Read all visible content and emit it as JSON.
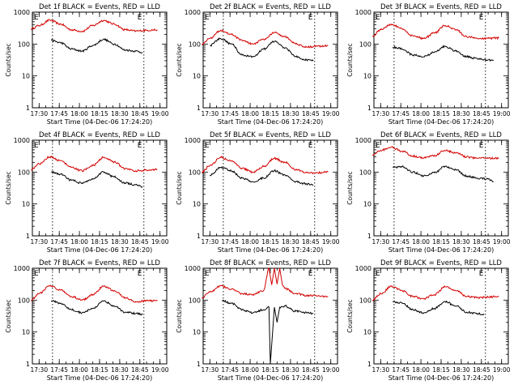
{
  "chart_data": [
    {
      "type": "line",
      "title": "Det 1f BLACK = Events, RED = LLD",
      "ylabel": "Counts/sec",
      "xlabel": "Start Time (04-Dec-06 17:24:20)",
      "x_tick_labels": [
        "17:30",
        "17:45",
        "18:00",
        "18:15",
        "18:30",
        "18:45",
        "19:00"
      ],
      "y_tick_labels": [
        "1",
        "10",
        "100",
        "1000"
      ],
      "ylim": [
        1,
        1000
      ],
      "y_scale": "log",
      "markers": [
        {
          "x": "17:40",
          "label": "E"
        },
        {
          "x": "18:48",
          "label": "E"
        }
      ],
      "series": [
        {
          "color": "#d40000",
          "x": [
            "17:24",
            "17:30",
            "17:38",
            "17:46",
            "17:54",
            "18:02",
            "18:10",
            "18:18",
            "18:26",
            "18:34",
            "18:42",
            "18:50",
            "18:58"
          ],
          "values": [
            300,
            380,
            560,
            420,
            280,
            250,
            380,
            550,
            420,
            280,
            255,
            270,
            280
          ]
        },
        {
          "color": "#000000",
          "x": [
            "17:39",
            "17:46",
            "17:54",
            "18:02",
            "18:10",
            "18:18",
            "18:26",
            "18:34",
            "18:42",
            "18:47"
          ],
          "values": [
            130,
            110,
            70,
            60,
            90,
            140,
            100,
            65,
            60,
            55
          ]
        }
      ]
    },
    {
      "type": "line",
      "title": "Det 2f BLACK = Events, RED = LLD",
      "ylabel": "Counts/sec",
      "xlabel": "Start Time (04-Dec-06 17:24:20)",
      "x_tick_labels": [
        "17:30",
        "17:45",
        "18:00",
        "18:15",
        "18:30",
        "18:45",
        "19:00"
      ],
      "y_tick_labels": [
        "1",
        "10",
        "100",
        "1000"
      ],
      "ylim": [
        1,
        1000
      ],
      "y_scale": "log",
      "markers": [
        {
          "x": "17:40",
          "label": "E"
        },
        {
          "x": "18:48",
          "label": "E"
        }
      ],
      "series": [
        {
          "color": "#d40000",
          "x": [
            "17:24",
            "17:30",
            "17:38",
            "17:46",
            "17:54",
            "18:02",
            "18:10",
            "18:18",
            "18:26",
            "18:34",
            "18:42",
            "18:50",
            "18:58"
          ],
          "values": [
            100,
            150,
            270,
            200,
            130,
            100,
            140,
            230,
            170,
            100,
            80,
            85,
            90
          ]
        },
        {
          "color": "#000000",
          "x": [
            "17:30",
            "17:38",
            "17:46",
            "17:54",
            "18:02",
            "18:10",
            "18:18",
            "18:26",
            "18:34",
            "18:42",
            "18:47"
          ],
          "values": [
            90,
            150,
            100,
            45,
            40,
            70,
            120,
            75,
            40,
            32,
            30
          ]
        }
      ]
    },
    {
      "type": "line",
      "title": "Det 3f BLACK = Events, RED = LLD",
      "ylabel": "Counts/sec",
      "xlabel": "Start Time (04-Dec-06 17:24:20)",
      "x_tick_labels": [
        "17:30",
        "17:45",
        "18:00",
        "18:15",
        "18:30",
        "18:45",
        "19:00"
      ],
      "y_tick_labels": [
        "1",
        "10",
        "100",
        "1000"
      ],
      "ylim": [
        1,
        1000
      ],
      "y_scale": "log",
      "markers": [
        {
          "x": "17:40",
          "label": "E"
        },
        {
          "x": "18:48",
          "label": "E"
        }
      ],
      "series": [
        {
          "color": "#d40000",
          "x": [
            "17:24",
            "17:30",
            "17:38",
            "17:46",
            "17:54",
            "18:02",
            "18:10",
            "18:18",
            "18:26",
            "18:34",
            "18:42",
            "18:50",
            "18:58"
          ],
          "values": [
            180,
            280,
            420,
            300,
            180,
            150,
            220,
            380,
            280,
            170,
            150,
            150,
            155
          ]
        },
        {
          "color": "#000000",
          "x": [
            "17:39",
            "17:46",
            "17:54",
            "18:02",
            "18:10",
            "18:18",
            "18:26",
            "18:34",
            "18:42",
            "18:50",
            "18:54"
          ],
          "values": [
            80,
            70,
            45,
            40,
            55,
            85,
            60,
            40,
            35,
            32,
            30
          ]
        }
      ]
    },
    {
      "type": "line",
      "title": "Det 4f BLACK = Events, RED = LLD",
      "ylabel": "Counts/sec",
      "xlabel": "Start Time (04-Dec-06 17:24:20)",
      "x_tick_labels": [
        "17:30",
        "17:45",
        "18:00",
        "18:15",
        "18:30",
        "18:45",
        "19:00"
      ],
      "y_tick_labels": [
        "1",
        "10",
        "100",
        "1000"
      ],
      "ylim": [
        1,
        1000
      ],
      "y_scale": "log",
      "markers": [
        {
          "x": "17:40",
          "label": "E"
        },
        {
          "x": "18:48",
          "label": "E"
        }
      ],
      "series": [
        {
          "color": "#d40000",
          "x": [
            "17:24",
            "17:30",
            "17:38",
            "17:46",
            "17:54",
            "18:02",
            "18:10",
            "18:18",
            "18:26",
            "18:34",
            "18:42",
            "18:50",
            "18:58"
          ],
          "values": [
            120,
            180,
            300,
            230,
            140,
            110,
            160,
            290,
            210,
            130,
            110,
            115,
            120
          ]
        },
        {
          "color": "#000000",
          "x": [
            "17:39",
            "17:46",
            "17:54",
            "18:02",
            "18:10",
            "18:18",
            "18:26",
            "18:34",
            "18:42",
            "18:47"
          ],
          "values": [
            100,
            85,
            55,
            45,
            60,
            100,
            70,
            45,
            40,
            35
          ]
        }
      ]
    },
    {
      "type": "line",
      "title": "Det 5f BLACK = Events, RED = LLD",
      "ylabel": "Counts/sec",
      "xlabel": "Start Time (04-Dec-06 17:24:20)",
      "x_tick_labels": [
        "17:30",
        "17:45",
        "18:00",
        "18:15",
        "18:30",
        "18:45",
        "19:00"
      ],
      "y_tick_labels": [
        "1",
        "10",
        "100",
        "1000"
      ],
      "ylim": [
        1,
        1000
      ],
      "y_scale": "log",
      "markers": [
        {
          "x": "17:40",
          "label": "E"
        },
        {
          "x": "18:48",
          "label": "E"
        }
      ],
      "series": [
        {
          "color": "#d40000",
          "x": [
            "17:24",
            "17:30",
            "17:38",
            "17:46",
            "17:54",
            "18:02",
            "18:10",
            "18:18",
            "18:26",
            "18:34",
            "18:42",
            "18:50",
            "18:58"
          ],
          "values": [
            100,
            160,
            290,
            220,
            130,
            100,
            150,
            270,
            200,
            120,
            95,
            95,
            100
          ]
        },
        {
          "color": "#000000",
          "x": [
            "17:30",
            "17:38",
            "17:46",
            "17:54",
            "18:02",
            "18:10",
            "18:18",
            "18:26",
            "18:34",
            "18:42",
            "18:47"
          ],
          "values": [
            80,
            140,
            110,
            65,
            50,
            65,
            110,
            80,
            50,
            42,
            40
          ]
        }
      ]
    },
    {
      "type": "line",
      "title": "Det 6f BLACK = Events, RED = LLD",
      "ylabel": "Counts/sec",
      "xlabel": "Start Time (04-Dec-06 17:24:20)",
      "x_tick_labels": [
        "17:30",
        "17:45",
        "18:00",
        "18:15",
        "18:30",
        "18:45",
        "19:00"
      ],
      "y_tick_labels": [
        "1",
        "10",
        "100",
        "1000"
      ],
      "ylim": [
        1,
        1000
      ],
      "y_scale": "log",
      "markers": [
        {
          "x": "17:40",
          "label": "E"
        },
        {
          "x": "18:48",
          "label": "E"
        }
      ],
      "series": [
        {
          "color": "#d40000",
          "x": [
            "17:24",
            "17:30",
            "17:38",
            "17:46",
            "17:54",
            "18:02",
            "18:10",
            "18:18",
            "18:26",
            "18:34",
            "18:42",
            "18:50",
            "18:58"
          ],
          "values": [
            350,
            480,
            600,
            450,
            320,
            280,
            330,
            470,
            400,
            300,
            270,
            270,
            275
          ]
        },
        {
          "color": "#000000",
          "x": [
            "17:39",
            "17:46",
            "17:54",
            "18:02",
            "18:10",
            "18:18",
            "18:26",
            "18:34",
            "18:42",
            "18:50",
            "18:54"
          ],
          "values": [
            140,
            150,
            100,
            75,
            95,
            150,
            120,
            75,
            65,
            60,
            50
          ]
        }
      ]
    },
    {
      "type": "line",
      "title": "Det 7f BLACK = Events, RED = LLD",
      "ylabel": "Counts/sec",
      "xlabel": "Start Time (04-Dec-06 17:24:20)",
      "x_tick_labels": [
        "17:30",
        "17:45",
        "18:00",
        "18:15",
        "18:30",
        "18:45",
        "19:00"
      ],
      "y_tick_labels": [
        "1",
        "10",
        "100",
        "1000"
      ],
      "ylim": [
        1,
        1000
      ],
      "y_scale": "log",
      "markers": [
        {
          "x": "17:40",
          "label": "E"
        },
        {
          "x": "18:48",
          "label": "E"
        }
      ],
      "series": [
        {
          "color": "#d40000",
          "x": [
            "17:24",
            "17:30",
            "17:38",
            "17:46",
            "17:54",
            "18:02",
            "18:10",
            "18:18",
            "18:26",
            "18:34",
            "18:42",
            "18:50",
            "18:58"
          ],
          "values": [
            100,
            160,
            280,
            210,
            130,
            100,
            150,
            270,
            200,
            120,
            90,
            95,
            95
          ]
        },
        {
          "color": "#000000",
          "x": [
            "17:39",
            "17:46",
            "17:54",
            "18:02",
            "18:10",
            "18:18",
            "18:26",
            "18:34",
            "18:42",
            "18:47"
          ],
          "values": [
            95,
            80,
            50,
            40,
            55,
            95,
            65,
            42,
            38,
            35
          ]
        }
      ]
    },
    {
      "type": "line",
      "title": "Det 8f BLACK = Events, RED = LLD",
      "ylabel": "Counts/sec",
      "xlabel": "Start Time (04-Dec-06 17:24:20)",
      "x_tick_labels": [
        "17:30",
        "17:45",
        "18:00",
        "18:15",
        "18:30",
        "18:45",
        "19:00"
      ],
      "y_tick_labels": [
        "1",
        "10",
        "100",
        "1000"
      ],
      "ylim": [
        1,
        1000
      ],
      "y_scale": "log",
      "markers": [
        {
          "x": "17:40",
          "label": "E"
        },
        {
          "x": "18:48",
          "label": "E"
        }
      ],
      "series": [
        {
          "color": "#d40000",
          "x": [
            "17:24",
            "17:30",
            "17:38",
            "17:46",
            "17:54",
            "18:02",
            "18:10",
            "18:14",
            "18:16",
            "18:18",
            "18:20",
            "18:22",
            "18:24",
            "18:26",
            "18:34",
            "18:42",
            "18:50",
            "18:58"
          ],
          "values": [
            120,
            180,
            280,
            220,
            160,
            150,
            200,
            1000,
            300,
            1000,
            320,
            1000,
            300,
            230,
            160,
            140,
            135,
            130
          ]
        },
        {
          "color": "#000000",
          "x": [
            "17:39",
            "17:46",
            "17:54",
            "18:02",
            "18:10",
            "18:14",
            "18:15",
            "18:18",
            "18:20",
            "18:22",
            "18:26",
            "18:34",
            "18:42",
            "18:47"
          ],
          "values": [
            95,
            80,
            50,
            40,
            50,
            60,
            1,
            60,
            20,
            60,
            65,
            45,
            40,
            38
          ]
        }
      ]
    },
    {
      "type": "line",
      "title": "Det 9f BLACK = Events, RED = LLD",
      "ylabel": "Counts/sec",
      "xlabel": "Start Time (04-Dec-06 17:24:20)",
      "x_tick_labels": [
        "17:30",
        "17:45",
        "18:00",
        "18:15",
        "18:30",
        "18:45",
        "19:00"
      ],
      "y_tick_labels": [
        "1",
        "10",
        "100",
        "1000"
      ],
      "ylim": [
        1,
        1000
      ],
      "y_scale": "log",
      "markers": [
        {
          "x": "17:40",
          "label": "E"
        },
        {
          "x": "18:48",
          "label": "E"
        }
      ],
      "series": [
        {
          "color": "#d40000",
          "x": [
            "17:24",
            "17:30",
            "17:38",
            "17:46",
            "17:54",
            "18:02",
            "18:10",
            "18:18",
            "18:26",
            "18:34",
            "18:42",
            "18:50",
            "18:58"
          ],
          "values": [
            100,
            160,
            270,
            200,
            130,
            110,
            150,
            260,
            200,
            130,
            120,
            125,
            130
          ]
        },
        {
          "color": "#000000",
          "x": [
            "17:39",
            "17:46",
            "17:54",
            "18:02",
            "18:10",
            "18:18",
            "18:26",
            "18:34",
            "18:42",
            "18:47"
          ],
          "values": [
            90,
            80,
            50,
            40,
            55,
            90,
            65,
            42,
            38,
            35
          ]
        }
      ]
    }
  ]
}
